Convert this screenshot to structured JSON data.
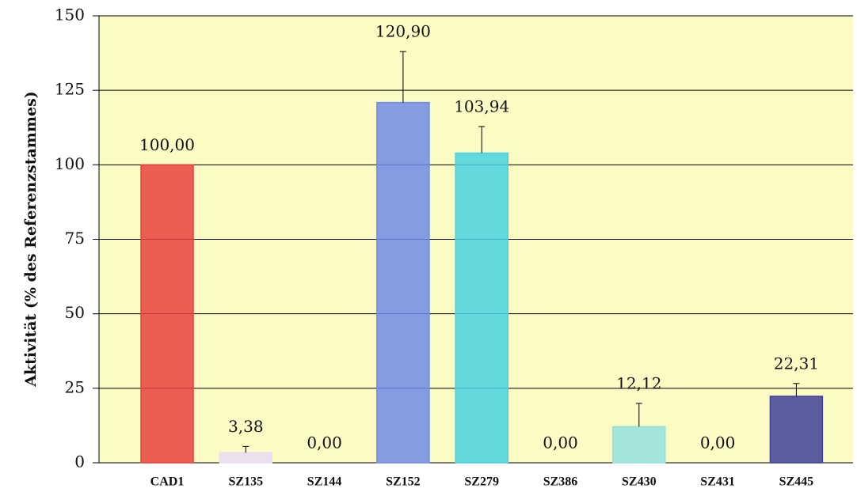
{
  "chart_data": {
    "type": "bar",
    "y_label": "Aktivität (% des Referenzstammes)",
    "categories": [
      "CAD1",
      "SZ135",
      "SZ144",
      "SZ152",
      "SZ279",
      "SZ386",
      "SZ430",
      "SZ431",
      "SZ445"
    ],
    "values": [
      100.0,
      3.38,
      0.0,
      120.9,
      103.94,
      0.0,
      12.12,
      0.0,
      22.31
    ],
    "value_labels": [
      "100,00",
      "3,38",
      "0,00",
      "120,90",
      "103,94",
      "0,00",
      "12,12",
      "0,00",
      "22,31"
    ],
    "errors": [
      0,
      2.1,
      0,
      17.1,
      8.9,
      0,
      7.8,
      0,
      4.3
    ],
    "colors": [
      "#e8403f",
      "#e8dcf6",
      "#d0d0f0",
      "#7089e8",
      "#45d2e2",
      "#8fd8dc",
      "#93e0de",
      "#a0a0d0",
      "#3f4199"
    ],
    "ylim": [
      0,
      150
    ],
    "yticks": [
      0,
      25,
      50,
      75,
      100,
      125,
      150
    ],
    "grid": true
  }
}
